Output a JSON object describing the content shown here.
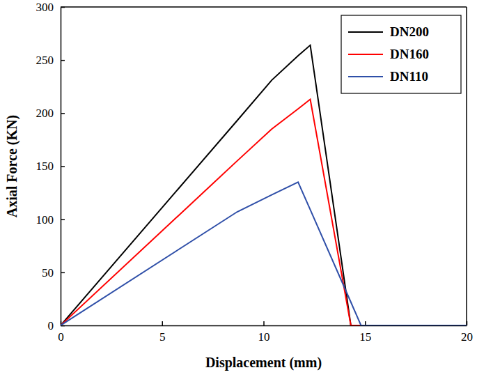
{
  "chart_data": {
    "type": "line",
    "x_label": "Displacement (mm)",
    "y_label": "Axial Force (KN)",
    "x": [
      0,
      8.7,
      10.4,
      11.7,
      12.3,
      14.3,
      14.8,
      20
    ],
    "series": [
      {
        "name": "DN200",
        "color": "#000000",
        "values": [
          0,
          193,
          231,
          254,
          264,
          0,
          0,
          0
        ]
      },
      {
        "name": "DN160",
        "color": "#ff0000",
        "values": [
          0,
          155,
          185,
          204,
          213,
          0,
          0,
          0
        ]
      },
      {
        "name": "DN110",
        "color": "#2f4fa8",
        "values": [
          0,
          107,
          123,
          135,
          109,
          22,
          0,
          0
        ]
      }
    ],
    "xlim": [
      0,
      20
    ],
    "xticks": [
      0,
      5,
      10,
      15,
      20
    ],
    "ylim": [
      0,
      300
    ],
    "yticks": [
      0,
      50,
      100,
      150,
      200,
      250,
      300
    ],
    "legend": "upper right",
    "grid": false
  }
}
